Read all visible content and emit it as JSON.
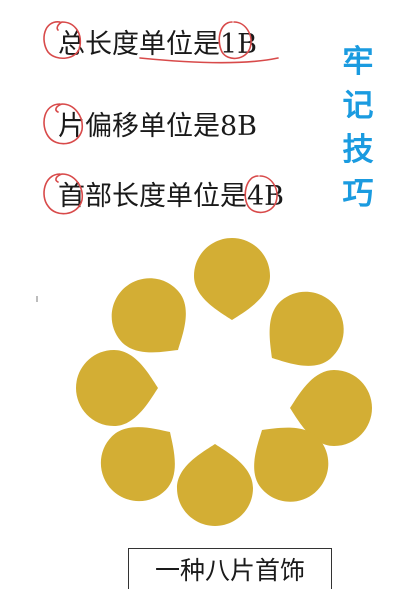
{
  "lines": [
    "总长度单位是1B",
    "片偏移单位是8B",
    "首部长度单位是4B"
  ],
  "side_label": [
    "牢",
    "记",
    "技",
    "巧"
  ],
  "caption": "一种八片首饰",
  "colors": {
    "petal": "#d3ae34",
    "annotation": "#d84a4a",
    "side_label": "#1a9be0",
    "text": "#1a1a1a"
  }
}
